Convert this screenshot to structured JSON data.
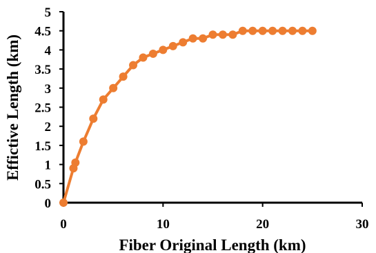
{
  "chart_data": {
    "type": "line",
    "title": "",
    "xlabel": "Fiber Original Length (km)",
    "ylabel": "Effictive Length (km)",
    "xlim": [
      0,
      30
    ],
    "ylim": [
      0,
      5
    ],
    "x_ticks": [
      "0",
      "10",
      "20",
      "30"
    ],
    "y_ticks": [
      "0",
      "0.5",
      "1",
      "1.5",
      "2",
      "2.5",
      "3",
      "3.5",
      "4",
      "4.5",
      "5"
    ],
    "grid": false,
    "legend": "none",
    "series": [
      {
        "color": "#ED7D31",
        "x": [
          0,
          1,
          1.2,
          2,
          3,
          4,
          5,
          6,
          7,
          8,
          9,
          10,
          11,
          12,
          13,
          14,
          15,
          16,
          17,
          18,
          19,
          20,
          21,
          22,
          23,
          24,
          25
        ],
        "y": [
          0,
          0.9,
          1.05,
          1.6,
          2.2,
          2.7,
          3.0,
          3.3,
          3.6,
          3.8,
          3.9,
          4.0,
          4.1,
          4.2,
          4.3,
          4.3,
          4.4,
          4.4,
          4.4,
          4.5,
          4.5,
          4.5,
          4.5,
          4.5,
          4.5,
          4.5,
          4.5
        ]
      }
    ]
  }
}
